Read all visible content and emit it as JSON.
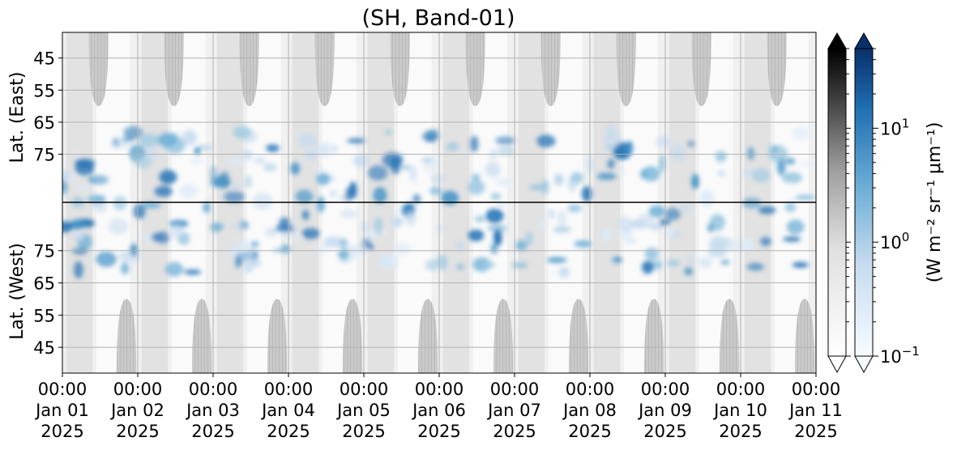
{
  "chart_data": {
    "type": "heatmap",
    "title": "(SH, Band-01)",
    "ylabel_east": "Lat. (East)",
    "ylabel_west": "Lat. (West)",
    "x_ticks": [
      {
        "time": "00:00",
        "date": "Jan 01",
        "year": "2025"
      },
      {
        "time": "00:00",
        "date": "Jan 02",
        "year": "2025"
      },
      {
        "time": "00:00",
        "date": "Jan 03",
        "year": "2025"
      },
      {
        "time": "00:00",
        "date": "Jan 04",
        "year": "2025"
      },
      {
        "time": "00:00",
        "date": "Jan 05",
        "year": "2025"
      },
      {
        "time": "00:00",
        "date": "Jan 06",
        "year": "2025"
      },
      {
        "time": "00:00",
        "date": "Jan 07",
        "year": "2025"
      },
      {
        "time": "00:00",
        "date": "Jan 08",
        "year": "2025"
      },
      {
        "time": "00:00",
        "date": "Jan 09",
        "year": "2025"
      },
      {
        "time": "00:00",
        "date": "Jan 10",
        "year": "2025"
      },
      {
        "time": "00:00",
        "date": "Jan 11",
        "year": "2025"
      }
    ],
    "x_range_days": [
      0,
      10
    ],
    "y_ticks_east": [
      "45",
      "55",
      "65",
      "75"
    ],
    "y_ticks_west": [
      "75",
      "65",
      "55",
      "45"
    ],
    "lat_range": [
      37,
      90
    ],
    "colorbar": {
      "scale": "log",
      "range": [
        0.1,
        50
      ],
      "tick_labels": [
        {
          "base": "10",
          "exp": "1",
          "value": 10
        },
        {
          "base": "10",
          "exp": "0",
          "value": 1
        },
        {
          "base": "10",
          "exp": "−1",
          "value": 0.1
        }
      ],
      "label": "(W m⁻² sr⁻¹ μm⁻¹)",
      "cmaps": [
        "Greys",
        "Blues"
      ],
      "extend": "both"
    },
    "grid": true,
    "day_period_days": 1
  },
  "colors": {
    "background": "#ffffff",
    "grid": "#b0b0b0",
    "no_data_cap": "#c8c8c8",
    "blue_low": "#deebf7",
    "blue_high": "#08306b",
    "grey_high": "#000000"
  }
}
